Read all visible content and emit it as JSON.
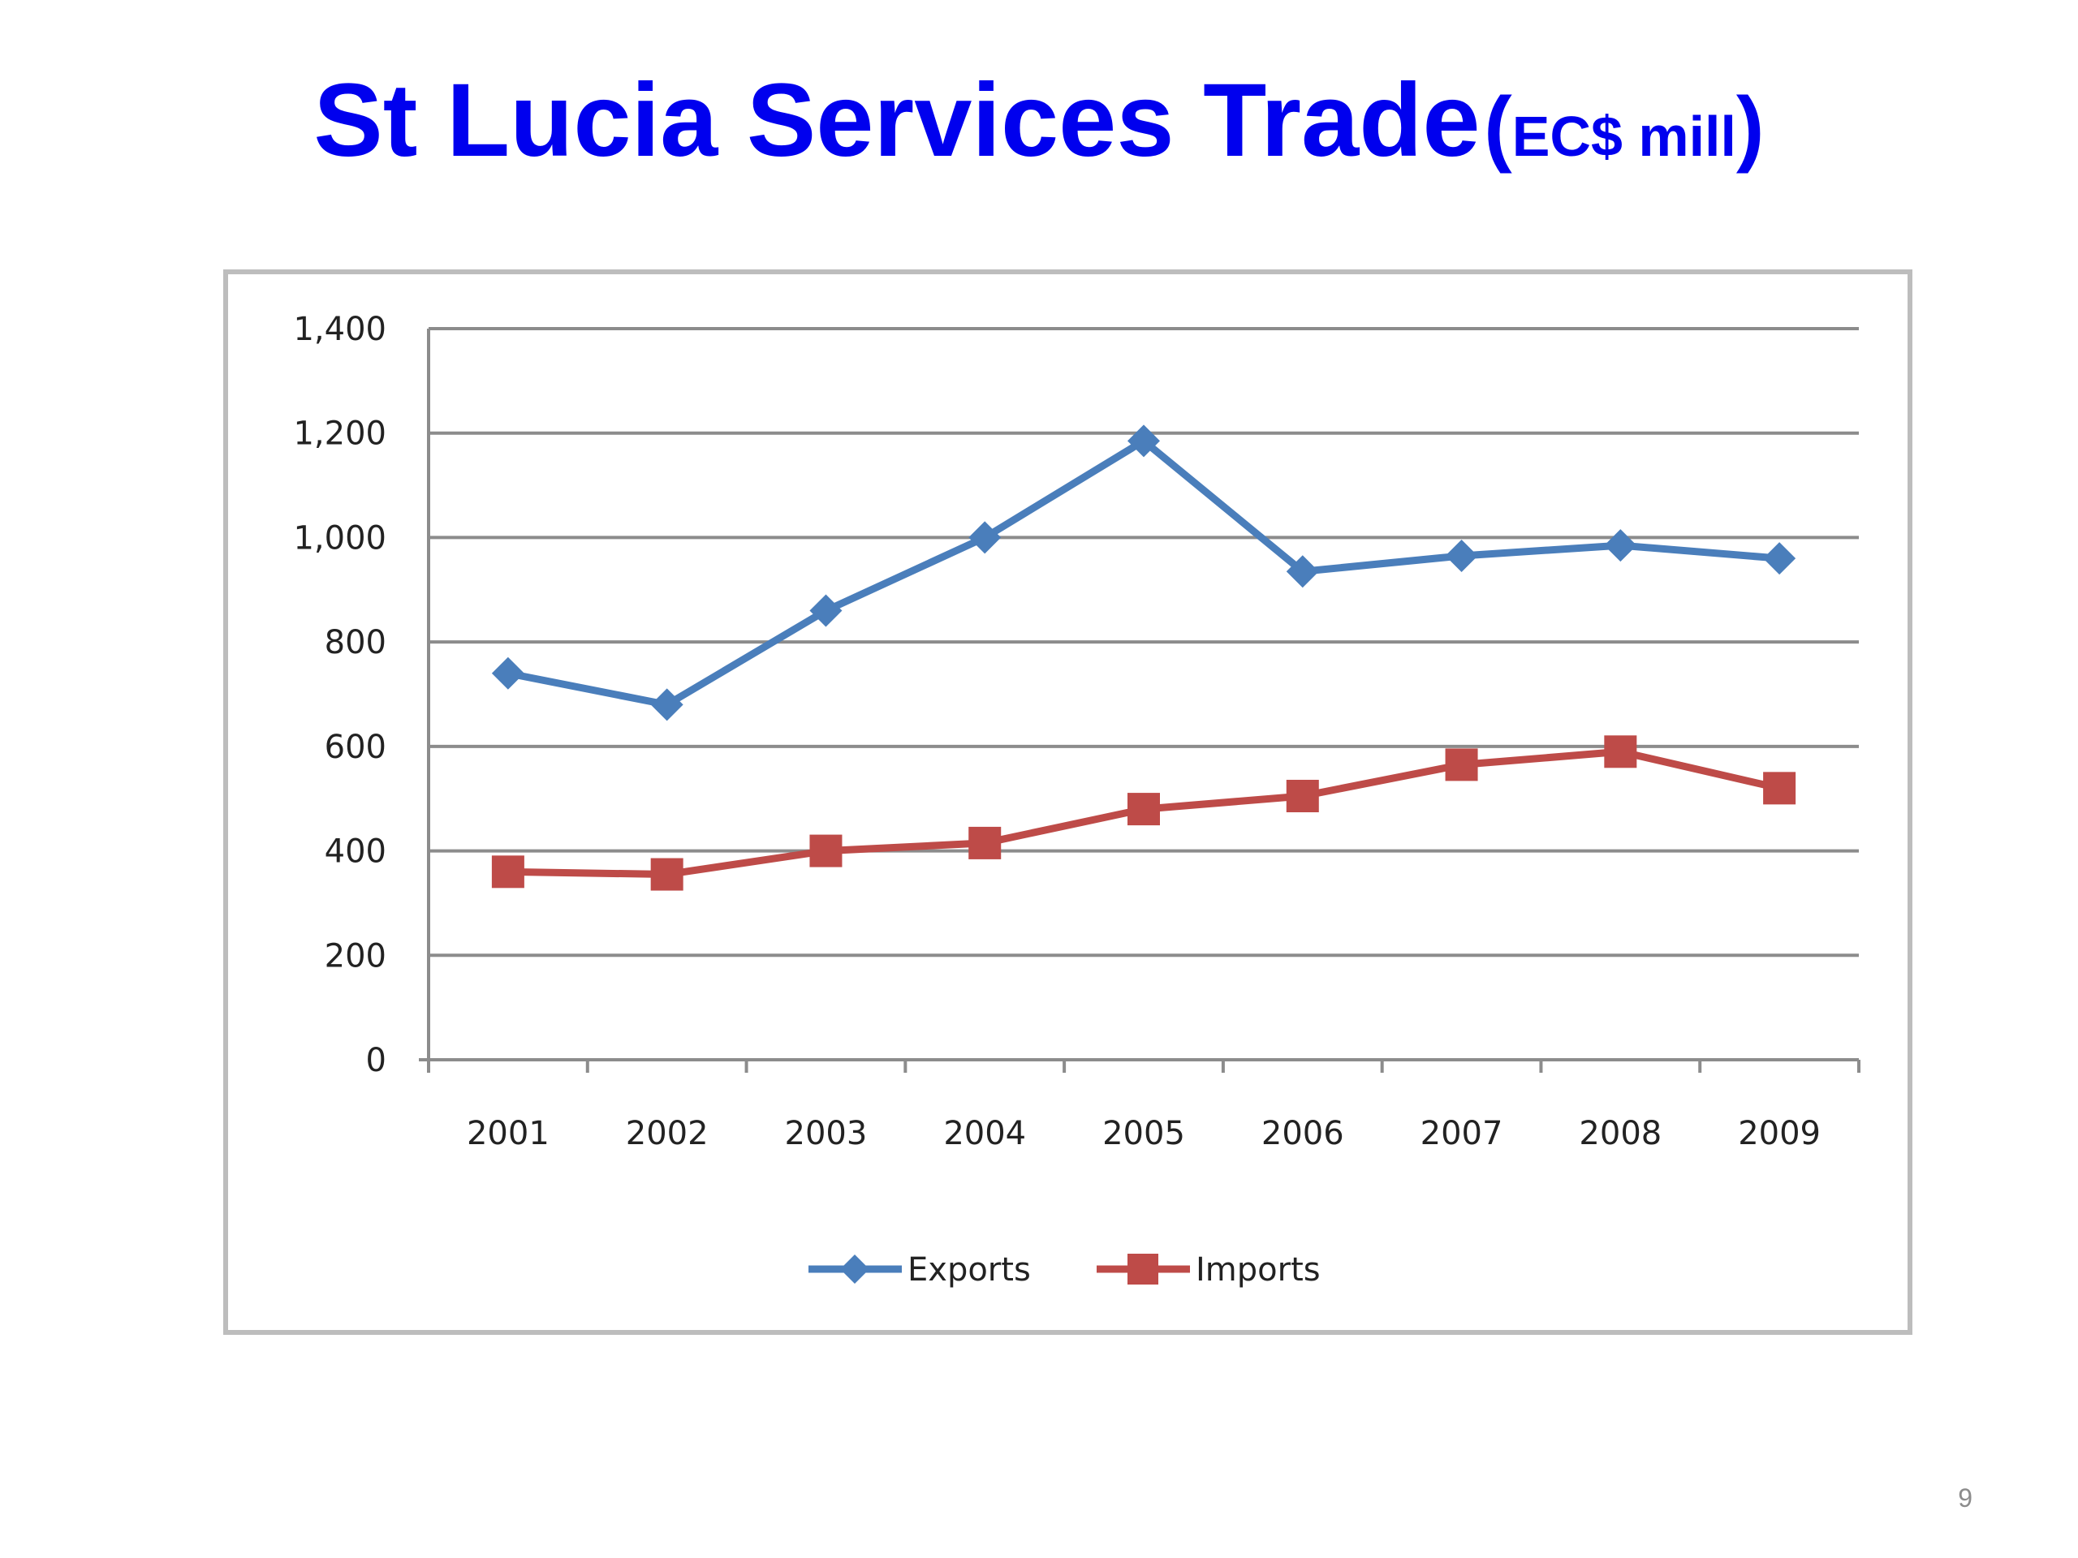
{
  "slide": {
    "title": "St Lucia Services Trade",
    "title_unit": "EC$ mill",
    "title_unit_open": "(",
    "title_unit_close": ")",
    "page_number": "9"
  },
  "colors": {
    "title": "#0000ee",
    "exports": "#4a7ebb",
    "imports": "#be4b48",
    "gridline": "#8c8c8c",
    "frame": "#bdbdbd"
  },
  "chart_data": {
    "type": "line",
    "title": "",
    "xlabel": "",
    "ylabel": "",
    "categories": [
      "2001",
      "2002",
      "2003",
      "2004",
      "2005",
      "2006",
      "2007",
      "2008",
      "2009"
    ],
    "ylim": [
      0,
      1400
    ],
    "yticks": [
      0,
      200,
      400,
      600,
      800,
      1000,
      1200,
      1400
    ],
    "ytick_labels": [
      "0",
      "200",
      "400",
      "600",
      "800",
      "1,000",
      "1,200",
      "1,400"
    ],
    "grid": true,
    "legend_position": "bottom",
    "series": [
      {
        "name": "Exports",
        "marker": "diamond",
        "values": [
          740,
          680,
          860,
          1000,
          1185,
          935,
          965,
          985,
          960
        ]
      },
      {
        "name": "Imports",
        "marker": "square",
        "values": [
          360,
          355,
          400,
          415,
          480,
          505,
          565,
          590,
          520
        ]
      }
    ]
  }
}
